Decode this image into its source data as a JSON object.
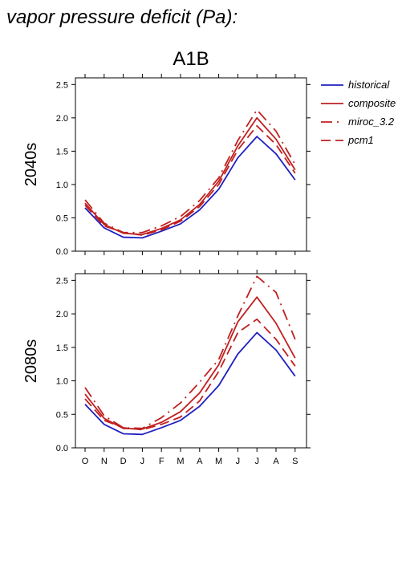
{
  "page_title": "vapor pressure deficit (Pa):",
  "scenario_title": "A1B",
  "colors": {
    "historical": "#2020c0",
    "model": "#c02020"
  },
  "legend": [
    {
      "key": "historical",
      "label": "historical",
      "color": "#2020c0",
      "dash": "solid"
    },
    {
      "key": "composite",
      "label": "composite",
      "color": "#c02020",
      "dash": "solid"
    },
    {
      "key": "miroc",
      "label": "miroc_3.2",
      "color": "#c02020",
      "dash": "dashdot"
    },
    {
      "key": "pcm1",
      "label": "pcm1",
      "color": "#c02020",
      "dash": "dash"
    }
  ],
  "chart_data": [
    {
      "type": "line",
      "panel_label": "2040s",
      "categories": [
        "O",
        "N",
        "D",
        "J",
        "F",
        "M",
        "A",
        "M",
        "J",
        "J",
        "A",
        "S"
      ],
      "ylim": [
        0,
        2.6
      ],
      "yticks": [
        "0.0",
        "0.5",
        "1.0",
        "1.5",
        "2.0",
        "2.5"
      ],
      "grid": false,
      "legend_position": "right",
      "series": [
        {
          "name": "historical",
          "values": [
            0.65,
            0.35,
            0.21,
            0.2,
            0.3,
            0.41,
            0.62,
            0.93,
            1.4,
            1.72,
            1.46,
            1.07
          ]
        },
        {
          "name": "composite",
          "values": [
            0.72,
            0.4,
            0.27,
            0.25,
            0.34,
            0.47,
            0.7,
            1.05,
            1.58,
            2.0,
            1.68,
            1.22
          ]
        },
        {
          "name": "miroc_3.2",
          "values": [
            0.77,
            0.42,
            0.28,
            0.28,
            0.38,
            0.52,
            0.76,
            1.1,
            1.66,
            2.12,
            1.8,
            1.3
          ]
        },
        {
          "name": "pcm1",
          "values": [
            0.69,
            0.38,
            0.28,
            0.24,
            0.32,
            0.45,
            0.67,
            1.0,
            1.52,
            1.88,
            1.6,
            1.17
          ]
        }
      ]
    },
    {
      "type": "line",
      "panel_label": "2080s",
      "categories": [
        "O",
        "N",
        "D",
        "J",
        "F",
        "M",
        "A",
        "M",
        "J",
        "J",
        "A",
        "S"
      ],
      "ylim": [
        0,
        2.6
      ],
      "yticks": [
        "0.0",
        "0.5",
        "1.0",
        "1.5",
        "2.0",
        "2.5"
      ],
      "grid": false,
      "series": [
        {
          "name": "historical",
          "values": [
            0.65,
            0.35,
            0.21,
            0.2,
            0.3,
            0.41,
            0.62,
            0.93,
            1.4,
            1.72,
            1.46,
            1.07
          ]
        },
        {
          "name": "composite",
          "values": [
            0.8,
            0.44,
            0.29,
            0.28,
            0.38,
            0.54,
            0.82,
            1.24,
            1.88,
            2.25,
            1.86,
            1.34
          ]
        },
        {
          "name": "miroc_3.2",
          "values": [
            0.9,
            0.48,
            0.3,
            0.29,
            0.45,
            0.67,
            0.98,
            1.32,
            1.97,
            2.56,
            2.32,
            1.62
          ]
        },
        {
          "name": "pcm1",
          "values": [
            0.73,
            0.41,
            0.3,
            0.27,
            0.35,
            0.46,
            0.7,
            1.14,
            1.72,
            1.92,
            1.62,
            1.22
          ]
        }
      ]
    }
  ]
}
